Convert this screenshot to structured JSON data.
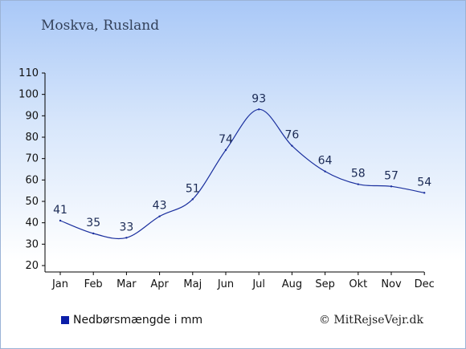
{
  "location": "Moskva, Rusland",
  "legend": {
    "label": "Nedbørsmængde i mm",
    "color": "#0b1ea8"
  },
  "credit": "© MitRejseVejr.dk",
  "colors": {
    "line": "#1a2f9e",
    "axis": "#000000"
  },
  "chart_data": {
    "type": "line",
    "categories": [
      "Jan",
      "Feb",
      "Mar",
      "Apr",
      "Maj",
      "Jun",
      "Jul",
      "Aug",
      "Sep",
      "Okt",
      "Nov",
      "Dec"
    ],
    "series": [
      {
        "name": "Nedbørsmængde i mm",
        "values": [
          41,
          35,
          33,
          43,
          51,
          74,
          93,
          76,
          64,
          58,
          57,
          54
        ]
      }
    ],
    "data_labels": [
      "41",
      "35",
      "33",
      "43",
      "51",
      "74",
      "93",
      "76",
      "64",
      "58",
      "57",
      "54"
    ],
    "ylim": [
      20,
      110
    ],
    "yticks": [
      20,
      30,
      40,
      50,
      60,
      70,
      80,
      90,
      100,
      110
    ],
    "ytick_labels": [
      "20",
      "30",
      "40",
      "50",
      "60",
      "70",
      "80",
      "90",
      "100",
      "110"
    ],
    "legend_position": "bottom-left",
    "grid": false
  }
}
